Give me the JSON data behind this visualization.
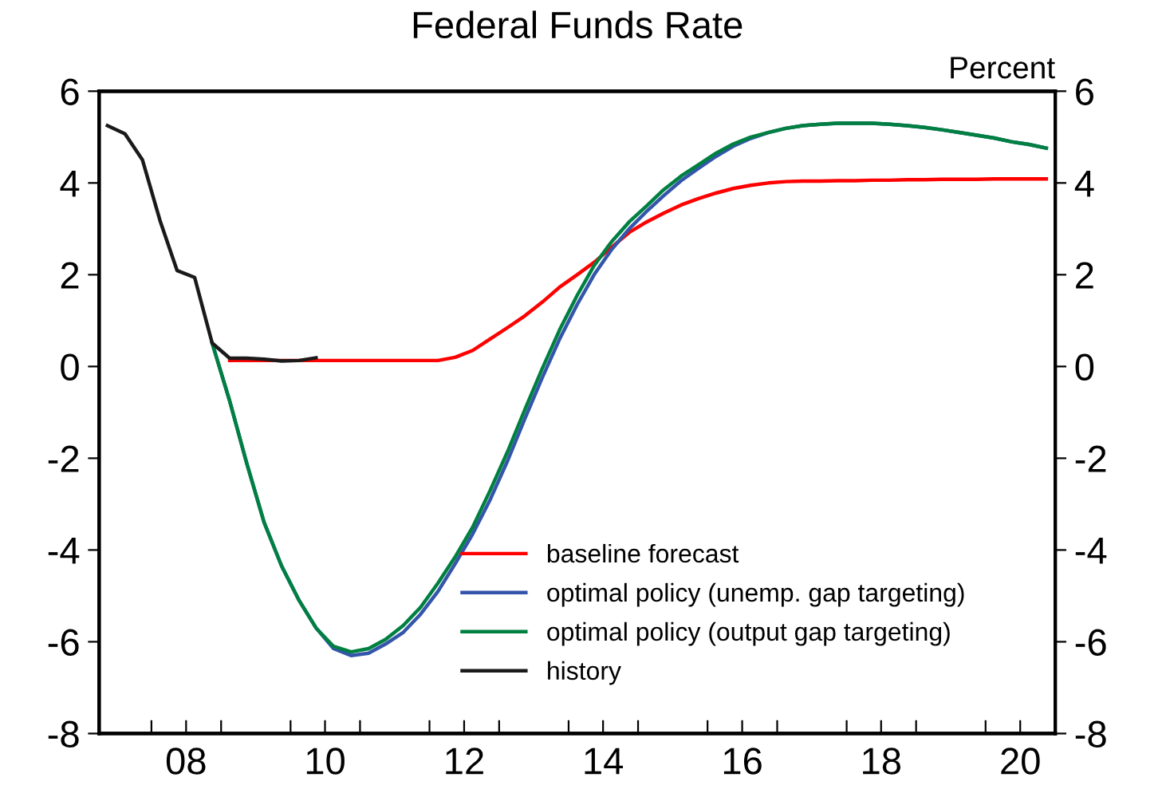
{
  "chart_data": {
    "type": "line",
    "title": "Federal Funds Rate",
    "y2label": "Percent",
    "xlim": [
      "2007-04-01",
      "2021-01-01"
    ],
    "xticks": [
      {
        "value": "2008-01-01",
        "label": null
      },
      {
        "value": "2008-07-01",
        "label": "08"
      },
      {
        "value": "2009-01-01",
        "label": null
      },
      {
        "value": "2010-01-01",
        "label": null
      },
      {
        "value": "2010-07-01",
        "label": "10"
      },
      {
        "value": "2011-01-01",
        "label": null
      },
      {
        "value": "2012-01-01",
        "label": null
      },
      {
        "value": "2012-07-01",
        "label": "12"
      },
      {
        "value": "2013-01-01",
        "label": null
      },
      {
        "value": "2014-01-01",
        "label": null
      },
      {
        "value": "2014-07-01",
        "label": "14"
      },
      {
        "value": "2015-01-01",
        "label": null
      },
      {
        "value": "2016-01-01",
        "label": null
      },
      {
        "value": "2016-07-01",
        "label": "16"
      },
      {
        "value": "2017-01-01",
        "label": null
      },
      {
        "value": "2018-01-01",
        "label": null
      },
      {
        "value": "2018-07-01",
        "label": "18"
      },
      {
        "value": "2019-01-01",
        "label": null
      },
      {
        "value": "2020-01-01",
        "label": null
      },
      {
        "value": "2020-07-01",
        "label": "20"
      },
      {
        "value": "2021-01-01",
        "label": null
      }
    ],
    "x": [
      "2008-11-15",
      "2009-02-15",
      "2009-05-15",
      "2009-08-15",
      "2009-11-15",
      "2010-02-15",
      "2010-05-15",
      "2010-08-15",
      "2010-11-15",
      "2011-02-15",
      "2011-05-15",
      "2011-08-15",
      "2011-11-15",
      "2012-02-15",
      "2012-05-15",
      "2012-08-15",
      "2012-11-15",
      "2013-02-15",
      "2013-05-15",
      "2013-08-15",
      "2013-11-15",
      "2014-02-15",
      "2014-05-15",
      "2014-08-15",
      "2014-11-15",
      "2015-02-15",
      "2015-05-15",
      "2015-08-15",
      "2015-11-15",
      "2016-02-15",
      "2016-05-15",
      "2016-08-15",
      "2016-11-15",
      "2017-02-15",
      "2017-05-15",
      "2017-08-15",
      "2017-11-15",
      "2018-02-15",
      "2018-05-15",
      "2018-08-15",
      "2018-11-15",
      "2019-02-15",
      "2019-05-15",
      "2019-08-15",
      "2019-11-15",
      "2020-02-15",
      "2020-05-15",
      "2020-08-15",
      "2020-11-15"
    ],
    "ylim": [
      -8,
      6
    ],
    "yticks": [
      -8,
      -6,
      -4,
      -2,
      0,
      2,
      4,
      6
    ],
    "y2lim": [
      -8,
      6
    ],
    "y2ticks": [
      -8,
      -6,
      -4,
      -2,
      0,
      2,
      4,
      6
    ],
    "grid": false,
    "legend": "bottom right",
    "marker": "none",
    "line_style": "solid",
    "series": [
      {
        "name": "baseline forecast",
        "color": "#ff0000",
        "x": [
          "2009-02-15",
          "2009-05-15",
          "2009-08-15",
          "2009-11-15",
          "2010-02-15",
          "2010-05-15",
          "2010-08-15",
          "2010-11-15",
          "2011-02-15",
          "2011-05-15",
          "2011-08-15",
          "2011-11-15",
          "2012-02-15",
          "2012-05-15",
          "2012-08-15",
          "2012-11-15",
          "2013-02-15",
          "2013-05-15",
          "2013-08-15",
          "2013-11-15",
          "2014-02-15",
          "2014-05-15",
          "2014-08-15",
          "2014-11-15",
          "2015-02-15",
          "2015-05-15",
          "2015-08-15",
          "2015-11-15",
          "2016-02-15",
          "2016-05-15",
          "2016-08-15",
          "2016-11-15",
          "2017-02-15",
          "2017-05-15",
          "2017-08-15",
          "2017-11-15",
          "2018-02-15",
          "2018-05-15",
          "2018-08-15",
          "2018-11-15",
          "2019-02-15",
          "2019-05-15",
          "2019-08-15",
          "2019-11-15",
          "2020-02-15",
          "2020-05-15",
          "2020-08-15",
          "2020-11-15"
        ],
        "values": [
          0.13,
          0.13,
          0.13,
          0.13,
          0.13,
          0.13,
          0.13,
          0.13,
          0.13,
          0.13,
          0.13,
          0.13,
          0.13,
          0.2,
          0.35,
          0.6,
          0.85,
          1.1,
          1.4,
          1.73,
          2.0,
          2.27,
          2.6,
          2.92,
          3.15,
          3.34,
          3.52,
          3.66,
          3.78,
          3.88,
          3.95,
          4.0,
          4.03,
          4.04,
          4.04,
          4.05,
          4.05,
          4.06,
          4.06,
          4.07,
          4.07,
          4.08,
          4.08,
          4.08,
          4.09,
          4.09,
          4.09,
          4.09
        ]
      },
      {
        "name": "optimal policy (unemp. gap targeting)",
        "color": "#3355aa",
        "values": [
          0.51,
          -0.75,
          -2.1,
          -3.4,
          -4.35,
          -5.1,
          -5.7,
          -6.15,
          -6.3,
          -6.25,
          -6.05,
          -5.8,
          -5.4,
          -4.9,
          -4.3,
          -3.65,
          -2.9,
          -2.05,
          -1.15,
          -0.25,
          0.6,
          1.35,
          2.0,
          2.55,
          3.0,
          3.38,
          3.72,
          4.05,
          4.32,
          4.58,
          4.8,
          4.97,
          5.1,
          5.19,
          5.25,
          5.28,
          5.3,
          5.3,
          5.3,
          5.28,
          5.25,
          5.21,
          5.16,
          5.1,
          5.04,
          4.98,
          4.9,
          4.84,
          4.76
        ]
      },
      {
        "name": "optimal policy (output gap targeting)",
        "color": "#008040",
        "values": [
          0.51,
          -0.75,
          -2.1,
          -3.4,
          -4.35,
          -5.1,
          -5.7,
          -6.1,
          -6.22,
          -6.15,
          -5.95,
          -5.65,
          -5.25,
          -4.72,
          -4.15,
          -3.5,
          -2.7,
          -1.85,
          -0.95,
          -0.05,
          0.8,
          1.55,
          2.2,
          2.72,
          3.15,
          3.5,
          3.85,
          4.15,
          4.4,
          4.65,
          4.85,
          5.0,
          5.1,
          5.19,
          5.25,
          5.28,
          5.3,
          5.3,
          5.3,
          5.28,
          5.25,
          5.21,
          5.16,
          5.1,
          5.04,
          4.98,
          4.9,
          4.84,
          4.76
        ]
      },
      {
        "name": "history",
        "color": "#1a1a1a",
        "x": [
          "2007-05-15",
          "2007-08-15",
          "2007-11-15",
          "2008-02-15",
          "2008-05-15",
          "2008-08-15",
          "2008-11-15",
          "2009-02-15",
          "2009-05-15",
          "2009-08-15",
          "2009-11-15",
          "2010-02-15",
          "2010-05-15"
        ],
        "values": [
          5.25,
          5.07,
          4.5,
          3.18,
          2.09,
          1.94,
          0.51,
          0.18,
          0.18,
          0.16,
          0.12,
          0.13,
          0.19
        ]
      }
    ]
  }
}
